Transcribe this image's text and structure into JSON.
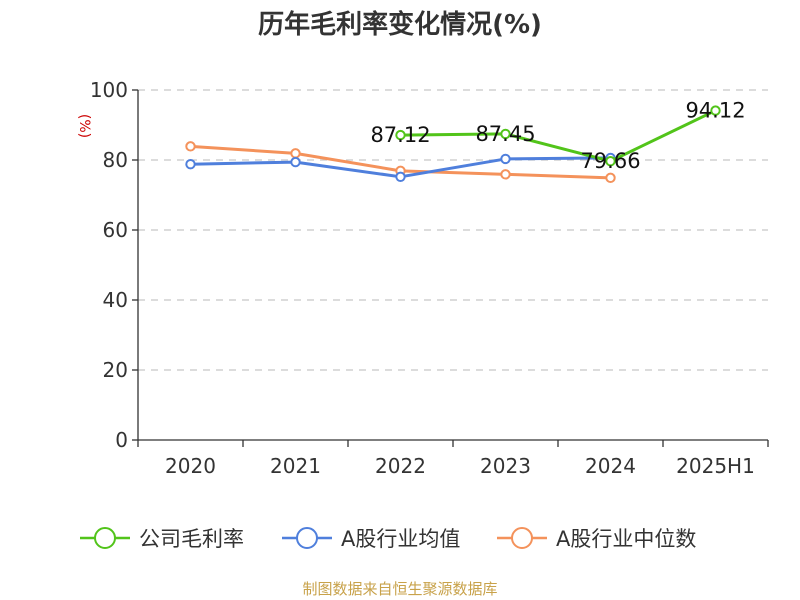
{
  "chart_data": {
    "type": "line",
    "title": "历年毛利率变化情况(%)",
    "ylabel": "(%)",
    "categories": [
      "2020",
      "2021",
      "2022",
      "2023",
      "2024",
      "2025H1"
    ],
    "ylim": [
      0,
      100
    ],
    "yticks": [
      0,
      20,
      40,
      60,
      80,
      100
    ],
    "grid": true,
    "legend_position": "bottom",
    "series": [
      {
        "name": "公司毛利率",
        "color": "#52c41a",
        "values": [
          null,
          null,
          87.12,
          87.45,
          79.66,
          94.12
        ],
        "labels": [
          "",
          "",
          "87.12",
          "87.45",
          "79.66",
          "94.12"
        ]
      },
      {
        "name": "A股行业均值",
        "color": "#4f7fdc",
        "values": [
          78.8,
          79.4,
          75.2,
          80.3,
          80.6,
          null
        ]
      },
      {
        "name": "A股行业中位数",
        "color": "#f4925b",
        "values": [
          83.9,
          81.9,
          76.9,
          75.9,
          74.9,
          null
        ]
      }
    ]
  },
  "footer": "制图数据来自恒生聚源数据库"
}
